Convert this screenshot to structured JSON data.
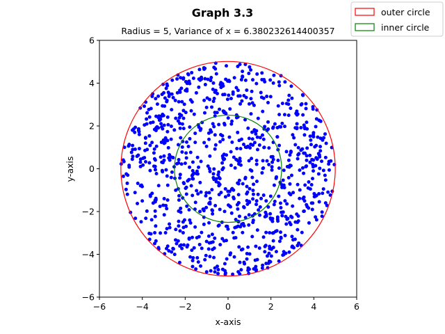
{
  "chart_data": {
    "type": "scatter",
    "suptitle": "Graph 3.3",
    "title": "Radius = 5, Variance of x = 6.380232614400357",
    "xlabel": "x-axis",
    "ylabel": "y-axis",
    "xlim": [
      -6,
      6
    ],
    "ylim": [
      -6,
      6
    ],
    "xticks": [
      "−6",
      "−4",
      "−2",
      "0",
      "2",
      "4",
      "6"
    ],
    "yticks": [
      "−6",
      "−4",
      "−2",
      "0",
      "2",
      "4",
      "6"
    ],
    "grid": false,
    "legend_position": "top-right (outside axes)",
    "circles": [
      {
        "name": "outer circle",
        "center": [
          0,
          0
        ],
        "radius": 5,
        "color": "#ff0000"
      },
      {
        "name": "inner circle",
        "center": [
          0,
          0
        ],
        "radius": 2.5,
        "color": "#008000"
      }
    ],
    "series": [
      {
        "marker_color": "#0000ff",
        "approx_point_count": 1000,
        "distribution": "uniform within circle of radius 5 centered at origin"
      }
    ]
  }
}
